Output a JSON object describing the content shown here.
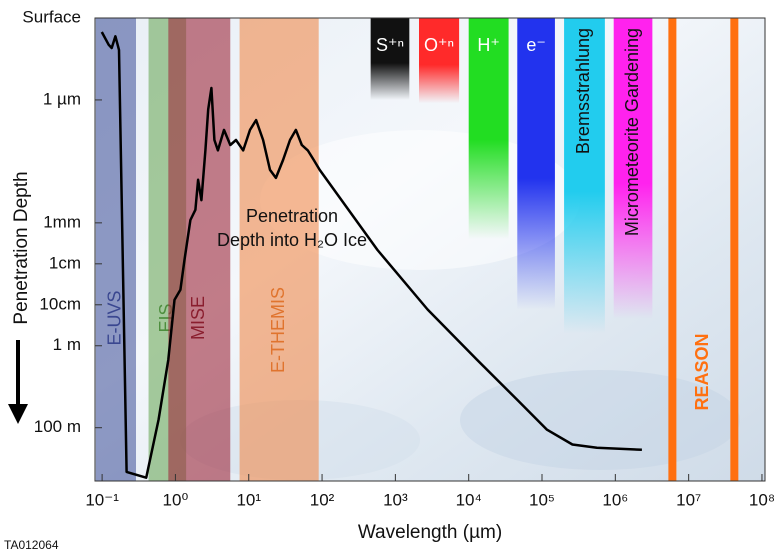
{
  "chart_data": {
    "type": "line",
    "x_label": "Wavelength (µm)",
    "y_label": "Penetration Depth",
    "annotation": [
      "Penetration",
      "Depth into H₂O Ice"
    ],
    "footer": "TA012064",
    "log_x": true,
    "log_y": true,
    "y_inverted": true,
    "xlim": [
      0.08,
      110000000.0
    ],
    "xticks": [
      {
        "value": 0.1,
        "label": "10⁻¹"
      },
      {
        "value": 1,
        "label": "10⁰"
      },
      {
        "value": 10,
        "label": "10¹"
      },
      {
        "value": 100,
        "label": "10²"
      },
      {
        "value": 1000,
        "label": "10³"
      },
      {
        "value": 10000,
        "label": "10⁴"
      },
      {
        "value": 100000,
        "label": "10⁵"
      },
      {
        "value": 1000000,
        "label": "10⁶"
      },
      {
        "value": 10000000,
        "label": "10⁷"
      },
      {
        "value": 100000000,
        "label": "10⁸"
      }
    ],
    "ylim": [
      1e-08,
      2000
    ],
    "yticks": [
      {
        "value": 1e-08,
        "label": "Surface"
      },
      {
        "value": 1e-06,
        "label": "1 µm"
      },
      {
        "value": 0.001,
        "label": "1mm"
      },
      {
        "value": 0.01,
        "label": "1cm"
      },
      {
        "value": 0.1,
        "label": "10cm"
      },
      {
        "value": 1,
        "label": "1 m"
      },
      {
        "value": 100,
        "label": "100 m"
      }
    ],
    "bands": [
      {
        "name": "E-UVS",
        "color": "#4a5a9e",
        "text_color": "#3a4790",
        "x_range": [
          0.082,
          0.29
        ]
      },
      {
        "name": "EIS",
        "color": "#6eaa5c",
        "text_color": "#4e8e3e",
        "x_range": [
          0.43,
          1.4
        ]
      },
      {
        "name": "MISE",
        "color": "#9e2a3c",
        "text_color": "#8a1e2e",
        "x_range": [
          0.8,
          5.6
        ]
      },
      {
        "name": "E-THEMIS",
        "color": "#f08a4c",
        "text_color": "#e0742e",
        "x_range": [
          7.5,
          90
        ]
      },
      {
        "name": "S⁺ⁿ",
        "color": "#111111",
        "text_color": "#ffffff",
        "x_range": [
          460,
          1550
        ],
        "depth": 1e-06
      },
      {
        "name": "O⁺ⁿ",
        "color": "#ff2a2a",
        "text_color": "#ffffff",
        "x_range": [
          2100,
          7400
        ],
        "depth": 1.2e-06
      },
      {
        "name": "H⁺",
        "color": "#22dd22",
        "text_color": "#ffffff",
        "x_range": [
          10000,
          35000
        ],
        "depth": 0.0025
      },
      {
        "name": "e⁻",
        "color": "#2233ee",
        "text_color": "#ffffff",
        "x_range": [
          46000,
          150000
        ],
        "depth": 0.13
      },
      {
        "name": "Bremsstrahlung",
        "color": "#22ccee",
        "text_color": "#111111",
        "x_range": [
          200000,
          720000
        ],
        "depth": 0.5
      },
      {
        "name": "Micrometeorite Gardening",
        "color": "#ff22ee",
        "text_color": "#111111",
        "x_range": [
          950000,
          3200000
        ],
        "depth": 0.22
      },
      {
        "name": "REASON",
        "color": "#ff7010",
        "text_color": "#ff7010",
        "lines": [
          6000000,
          42000000
        ]
      }
    ],
    "series": [
      {
        "name": "Penetration Depth into H₂O Ice",
        "color": "#000000",
        "x": [
          0.099,
          0.123,
          0.135,
          0.152,
          0.17,
          0.216,
          0.4,
          0.59,
          0.8,
          0.97,
          1.17,
          1.33,
          1.6,
          1.87,
          2.04,
          2.26,
          2.56,
          2.8,
          3.1,
          3.4,
          3.8,
          4.6,
          5.6,
          6.7,
          8.4,
          10.4,
          12.6,
          15.7,
          19.5,
          23.5,
          29.4,
          36.5,
          44,
          53,
          64,
          77,
          93,
          570,
          2750,
          13000,
          46000,
          117000,
          260000,
          560000,
          2300000
        ],
        "values": [
          2.2e-08,
          4.5e-08,
          5.4e-08,
          2.8e-08,
          6e-08,
          1200,
          1660,
          63,
          2.2,
          0.076,
          0.043,
          0.008,
          0.00085,
          0.00048,
          8.9e-05,
          0.00028,
          1.7e-05,
          1.7e-06,
          5.1e-07,
          9.5e-06,
          1.7e-05,
          5.4e-06,
          1.26e-05,
          9.5e-06,
          1.7e-05,
          5.4e-06,
          3.1e-06,
          9.5e-06,
          5.1e-05,
          8e-05,
          2.9e-05,
          9.5e-06,
          5.4e-06,
          1.26e-05,
          1.7e-05,
          2.9e-05,
          5.1e-05,
          0.0046,
          0.13,
          2.2,
          21,
          112,
          257,
          309,
          347
        ]
      }
    ]
  }
}
